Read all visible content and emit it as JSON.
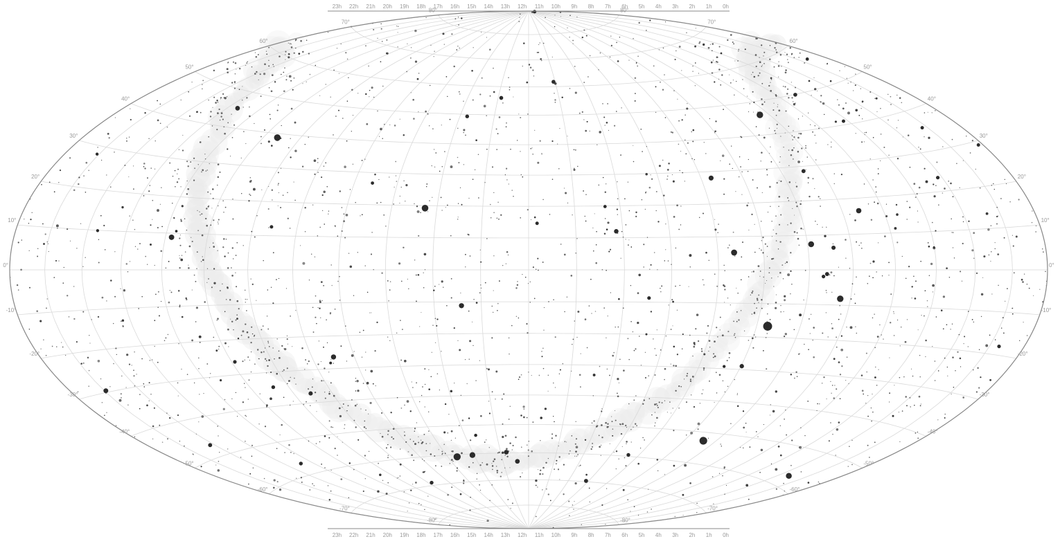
{
  "map": {
    "projection": "hammer-aitoff",
    "colors": {
      "background": "#ffffff",
      "grid": "#d9d9d9",
      "outline": "#888888",
      "milky_way": "#ececec",
      "stars": "#2b2b2b",
      "labels": "#9a9a9a"
    },
    "ra_labels": [
      "23h",
      "22h",
      "21h",
      "20h",
      "19h",
      "18h",
      "17h",
      "16h",
      "15h",
      "14h",
      "13h",
      "12h",
      "11h",
      "10h",
      "9h",
      "8h",
      "7h",
      "6h",
      "5h",
      "4h",
      "3h",
      "2h",
      "1h",
      "0h"
    ],
    "dec_labels": [
      {
        "deg": 80,
        "label": "80°"
      },
      {
        "deg": 70,
        "label": "70°"
      },
      {
        "deg": 60,
        "label": "60°"
      },
      {
        "deg": 50,
        "label": "50°"
      },
      {
        "deg": 40,
        "label": "40°"
      },
      {
        "deg": 30,
        "label": "30°"
      },
      {
        "deg": 20,
        "label": "20°"
      },
      {
        "deg": 10,
        "label": "10°"
      },
      {
        "deg": 0,
        "label": "0°"
      },
      {
        "deg": -10,
        "label": "-10°"
      },
      {
        "deg": -20,
        "label": "-20°"
      },
      {
        "deg": -30,
        "label": "-30°"
      },
      {
        "deg": -40,
        "label": "-40°"
      },
      {
        "deg": -50,
        "label": "-50°"
      },
      {
        "deg": -60,
        "label": "-60°"
      },
      {
        "deg": -70,
        "label": "-70°"
      },
      {
        "deg": -80,
        "label": "-80°"
      }
    ],
    "bright_stars": [
      {
        "ra_h": 6.75,
        "dec": -16.7,
        "mag": -1.5
      },
      {
        "ra_h": 6.4,
        "dec": -52.7,
        "mag": -0.7
      },
      {
        "ra_h": 14.66,
        "dec": -60.8,
        "mag": -0.3
      },
      {
        "ra_h": 18.62,
        "dec": 38.8,
        "mag": 0.0
      },
      {
        "ra_h": 5.28,
        "dec": 46.0,
        "mag": 0.1
      },
      {
        "ra_h": 14.26,
        "dec": 19.2,
        "mag": 0.0
      },
      {
        "ra_h": 5.24,
        "dec": -8.2,
        "mag": 0.1
      },
      {
        "ra_h": 7.65,
        "dec": 5.2,
        "mag": 0.4
      },
      {
        "ra_h": 1.63,
        "dec": -57.2,
        "mag": 0.5
      },
      {
        "ra_h": 5.92,
        "dec": 7.4,
        "mag": 0.5
      },
      {
        "ra_h": 14.06,
        "dec": -60.4,
        "mag": 0.6
      },
      {
        "ra_h": 19.85,
        "dec": 8.9,
        "mag": 0.8
      },
      {
        "ra_h": 4.6,
        "dec": 16.5,
        "mag": 0.9
      },
      {
        "ra_h": 13.42,
        "dec": -11.2,
        "mag": 1.0
      },
      {
        "ra_h": 16.49,
        "dec": -26.4,
        "mag": 1.0
      },
      {
        "ra_h": 7.76,
        "dec": 28.0,
        "mag": 1.1
      },
      {
        "ra_h": 22.96,
        "dec": -29.6,
        "mag": 1.2
      },
      {
        "ra_h": 20.69,
        "dec": 45.3,
        "mag": 1.3
      },
      {
        "ra_h": 12.8,
        "dec": -59.7,
        "mag": 1.3
      },
      {
        "ra_h": 10.14,
        "dec": 12.0,
        "mag": 1.4
      },
      {
        "ra_h": 12.44,
        "dec": -63.1,
        "mag": 1.3
      },
      {
        "ra_h": 6.98,
        "dec": -28.97,
        "mag": 1.5
      },
      {
        "ra_h": 17.56,
        "dec": -37.1,
        "mag": 1.6
      },
      {
        "ra_h": 5.42,
        "dec": 6.3,
        "mag": 1.6
      },
      {
        "ra_h": 5.44,
        "dec": 28.6,
        "mag": 1.7
      },
      {
        "ra_h": 5.6,
        "dec": -1.2,
        "mag": 1.7
      },
      {
        "ra_h": 22.14,
        "dec": -46.96,
        "mag": 1.7
      },
      {
        "ra_h": 12.9,
        "dec": 55.96,
        "mag": 1.8
      },
      {
        "ra_h": 3.41,
        "dec": 49.9,
        "mag": 1.8
      },
      {
        "ra_h": 11.06,
        "dec": 61.75,
        "mag": 1.8
      },
      {
        "ra_h": 18.4,
        "dec": -34.4,
        "mag": 1.9
      },
      {
        "ra_h": 8.38,
        "dec": -59.5,
        "mag": 1.9
      },
      {
        "ra_h": 20.43,
        "dec": -56.7,
        "mag": 1.9
      },
      {
        "ra_h": 13.79,
        "dec": 49.3,
        "mag": 1.9
      },
      {
        "ra_h": 2.12,
        "dec": 23.5,
        "mag": 2.0
      },
      {
        "ra_h": 2.53,
        "dec": 89.3,
        "mag": 2.0
      },
      {
        "ra_h": 0.73,
        "dec": -17.99,
        "mag": 2.0
      },
      {
        "ra_h": 9.46,
        "dec": -8.7,
        "mag": 2.0
      },
      {
        "ra_h": 17.58,
        "dec": 12.6,
        "mag": 2.1
      },
      {
        "ra_h": 0.14,
        "dec": 29.1,
        "mag": 2.1
      },
      {
        "ra_h": 3.14,
        "dec": 40.96,
        "mag": 2.1
      },
      {
        "ra_h": 10.33,
        "dec": 19.8,
        "mag": 2.2
      },
      {
        "ra_h": 16.84,
        "dec": -69.0,
        "mag": 1.9
      },
      {
        "ra_h": 13.66,
        "dec": -53.5,
        "mag": 2.3
      },
      {
        "ra_h": 15.58,
        "dec": 26.7,
        "mag": 2.2
      },
      {
        "ra_h": 18.92,
        "dec": -26.3,
        "mag": 2.0
      },
      {
        "ra_h": 5.68,
        "dec": -1.9,
        "mag": 2.0
      },
      {
        "ra_h": 1.16,
        "dec": 35.6,
        "mag": 2.1
      },
      {
        "ra_h": 16.62,
        "dec": -28.2,
        "mag": 2.6
      },
      {
        "ra_h": 21.74,
        "dec": 9.9,
        "mag": 2.4
      },
      {
        "ra_h": 0.67,
        "dec": 56.5,
        "mag": 2.2
      },
      {
        "ra_h": 23.06,
        "dec": 28.1,
        "mag": 2.4
      },
      {
        "ra_h": 9.13,
        "dec": -69.7,
        "mag": 1.7
      },
      {
        "ra_h": 19.77,
        "dec": 10.6,
        "mag": 2.7
      },
      {
        "ra_h": 11.82,
        "dec": 14.6,
        "mag": 2.1
      },
      {
        "ra_h": 7.4,
        "dec": -29.3,
        "mag": 2.4
      }
    ],
    "faint_star_count": 2200
  }
}
